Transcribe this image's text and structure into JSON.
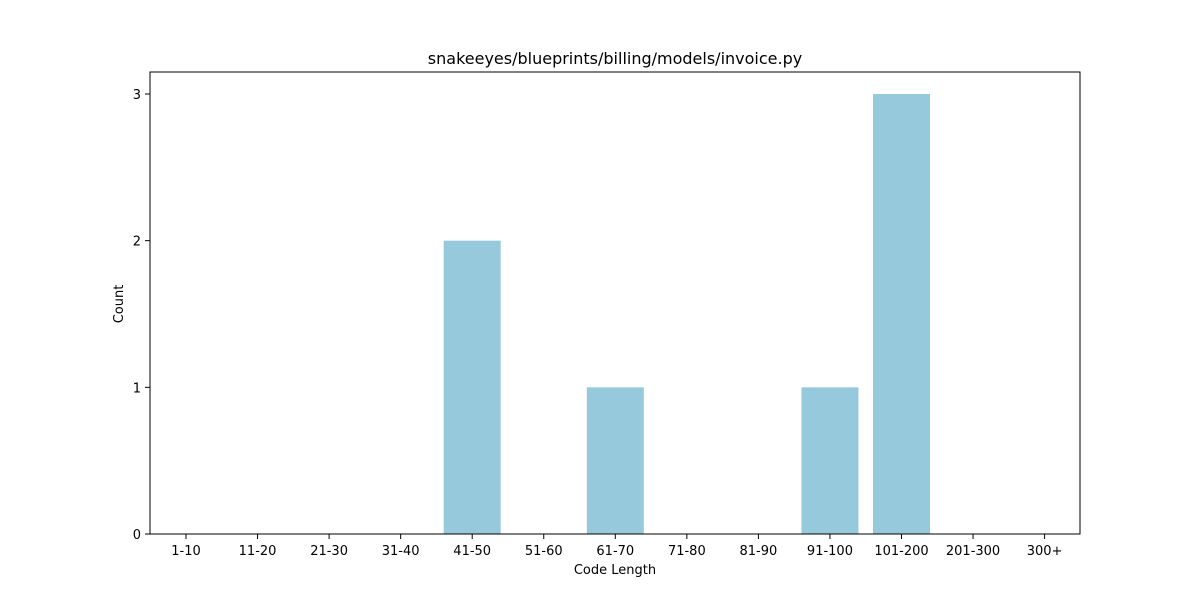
{
  "chart_data": {
    "type": "bar",
    "title": "snakeeyes/blueprints/billing/models/invoice.py",
    "xlabel": "Code Length",
    "ylabel": "Count",
    "categories": [
      "1-10",
      "11-20",
      "21-30",
      "31-40",
      "41-50",
      "51-60",
      "61-70",
      "71-80",
      "81-90",
      "91-100",
      "101-200",
      "201-300",
      "300+"
    ],
    "values": [
      0,
      0,
      0,
      0,
      2,
      0,
      1,
      0,
      0,
      1,
      3,
      0,
      0
    ],
    "ylim": [
      0,
      3.15
    ],
    "yticks": [
      0,
      1,
      2,
      3
    ],
    "bar_color": "#96c9dc",
    "grid": false,
    "legend": "none"
  }
}
